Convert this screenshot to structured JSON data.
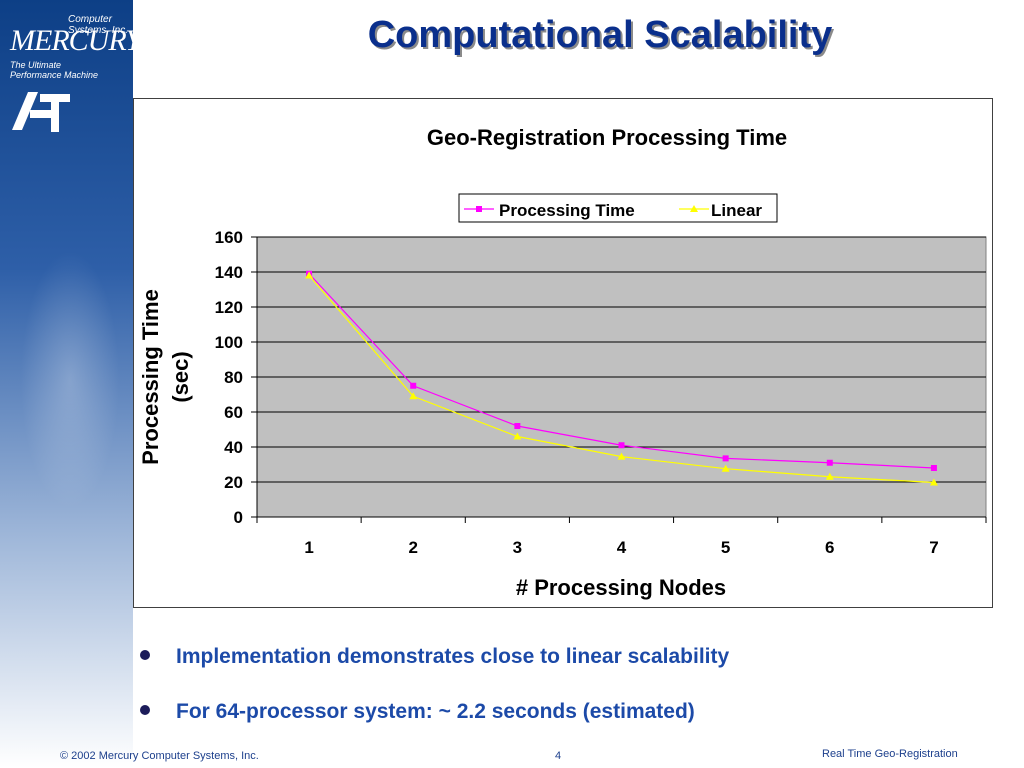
{
  "brand": {
    "company": "Computer Systems, Inc.",
    "name": "MERCURY",
    "tagline_1": "The Ultimate",
    "tagline_2": "Performance Machine"
  },
  "slide": {
    "title": "Computational Scalability",
    "bullets": [
      "Implementation demonstrates close to linear scalability",
      "For 64-processor system: ~ 2.2 seconds (estimated)"
    ]
  },
  "footer": {
    "copyright": "© 2002 Mercury Computer Systems, Inc.",
    "page": "4",
    "title": "Real Time Geo-Registration"
  },
  "colors": {
    "title": "#0a2f8c",
    "bullets": "#1c4aa8",
    "plot_area": "#c0c0c0",
    "processing_time": "#ff00ff",
    "linear": "#ffff00"
  },
  "chart_data": {
    "type": "line",
    "title": "Geo-Registration Processing Time",
    "xlabel": "# Processing Nodes",
    "ylabel": "Processing Time (sec)",
    "categories": [
      "1",
      "2",
      "3",
      "4",
      "5",
      "6",
      "7"
    ],
    "ylim": [
      0,
      160
    ],
    "yticks": [
      "0",
      "20",
      "40",
      "60",
      "80",
      "100",
      "120",
      "140",
      "160"
    ],
    "grid": true,
    "legend": "top-right",
    "series": [
      {
        "name": "Processing Time",
        "color": "#ff00ff",
        "marker": "square",
        "values": [
          139,
          75,
          52,
          41,
          33.5,
          31,
          28
        ]
      },
      {
        "name": "Linear",
        "color": "#ffff00",
        "marker": "triangle",
        "values": [
          138,
          69,
          46,
          34.5,
          27.6,
          23,
          19.7
        ]
      }
    ]
  }
}
